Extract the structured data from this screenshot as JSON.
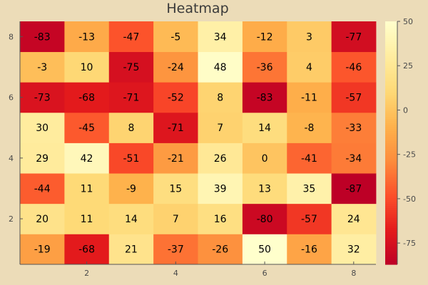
{
  "chart_data": {
    "type": "heatmap",
    "title": "Heatmap",
    "x": [
      1,
      2,
      3,
      4,
      5,
      6,
      7,
      8
    ],
    "y": [
      1,
      2,
      3,
      4,
      5,
      6,
      7,
      8
    ],
    "x_ticks": [
      2,
      4,
      6,
      8
    ],
    "y_ticks": [
      2,
      4,
      6,
      8
    ],
    "z": [
      [
        -19,
        -68,
        21,
        -37,
        -26,
        50,
        -16,
        32
      ],
      [
        20,
        11,
        14,
        7,
        16,
        -80,
        -57,
        24
      ],
      [
        -44,
        11,
        -9,
        15,
        39,
        13,
        35,
        -87
      ],
      [
        29,
        42,
        -51,
        -21,
        26,
        0,
        -41,
        -34
      ],
      [
        30,
        -45,
        8,
        -71,
        7,
        14,
        -8,
        -33
      ],
      [
        -73,
        -68,
        -71,
        -52,
        8,
        -83,
        -11,
        -57
      ],
      [
        -3,
        10,
        -75,
        -24,
        48,
        -36,
        4,
        -46
      ],
      [
        -83,
        -13,
        -47,
        -5,
        34,
        -12,
        3,
        -77
      ]
    ],
    "colorbar": {
      "ticks": [
        50,
        25,
        0,
        -25,
        -50,
        -75
      ],
      "range": [
        -87,
        50
      ],
      "colormap": "YlOrRd (reversed)"
    },
    "colors": {
      "background": "#ecdcb8",
      "high": "#ffffcc",
      "low": "#bd0026"
    },
    "grid": false
  }
}
